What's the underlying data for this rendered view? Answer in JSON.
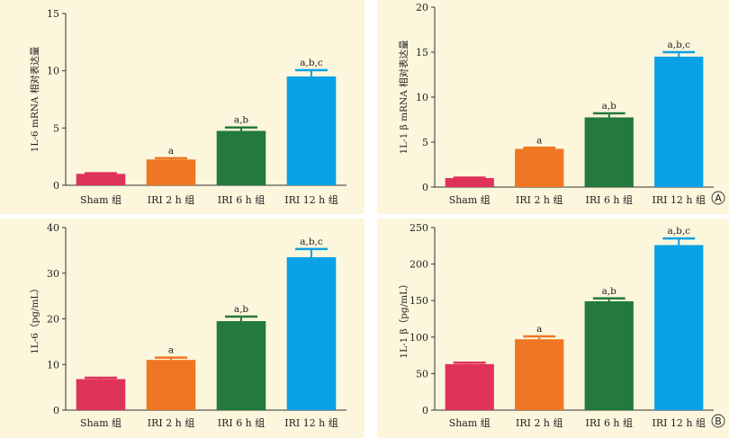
{
  "colors": {
    "panel_bg": "#fbf6dc",
    "sham": "#e0335a",
    "irl2": "#ef7622",
    "irl6": "#237a3c",
    "irl12": "#0aa2e6",
    "axis": "#333333"
  },
  "chart_data": [
    {
      "type": "bar",
      "categories": [
        "Sham 组",
        "IRI 2 h 组",
        "IRI 6 h 组",
        "IRI 12 h 组"
      ],
      "values": [
        1.0,
        2.25,
        4.75,
        9.5
      ],
      "errors": [
        0.05,
        0.12,
        0.3,
        0.55
      ],
      "significance": [
        "",
        "a",
        "a,b",
        "a,b,c"
      ],
      "ylabel": "1L-6 mRNA 相对表达量",
      "ylim": [
        0,
        15
      ],
      "yticks": [
        0,
        5,
        10,
        15
      ],
      "panel_letter": ""
    },
    {
      "type": "bar",
      "categories": [
        "Sham 组",
        "IRI 2 h 组",
        "IRI 6 h 组",
        "IRI 12 h 组"
      ],
      "values": [
        1.0,
        4.25,
        7.75,
        14.5
      ],
      "errors": [
        0.05,
        0.12,
        0.45,
        0.5
      ],
      "significance": [
        "",
        "a",
        "a,b",
        "a,b,c"
      ],
      "ylabel": "1L-1 β  mRNA 相对表达量",
      "ylim": [
        0,
        20
      ],
      "yticks": [
        0,
        5,
        10,
        15,
        20
      ],
      "panel_letter": "A"
    },
    {
      "type": "bar",
      "categories": [
        "Sham 组",
        "IRI 2 h 组",
        "IRI 6 h 组",
        "IRI 12 h 组"
      ],
      "values": [
        6.8,
        11.0,
        19.5,
        33.5
      ],
      "errors": [
        0.3,
        0.5,
        1.0,
        1.8
      ],
      "significance": [
        "",
        "a",
        "a,b",
        "a,b,c"
      ],
      "ylabel": "1L-6（pg/mL）",
      "ylim": [
        0,
        40
      ],
      "yticks": [
        0,
        10,
        20,
        30,
        40
      ],
      "panel_letter": ""
    },
    {
      "type": "bar",
      "categories": [
        "Sham 组",
        "IRI 2 h 组",
        "IRI 6 h 组",
        "IRI 12 h 组"
      ],
      "values": [
        63,
        97,
        149,
        226
      ],
      "errors": [
        2,
        4,
        4,
        9
      ],
      "significance": [
        "",
        "a",
        "a,b",
        "a,b,c"
      ],
      "ylabel": "1L-1 β（pg/mL）",
      "ylim": [
        0,
        250
      ],
      "yticks": [
        0,
        50,
        100,
        150,
        200,
        250
      ],
      "panel_letter": "B"
    }
  ]
}
